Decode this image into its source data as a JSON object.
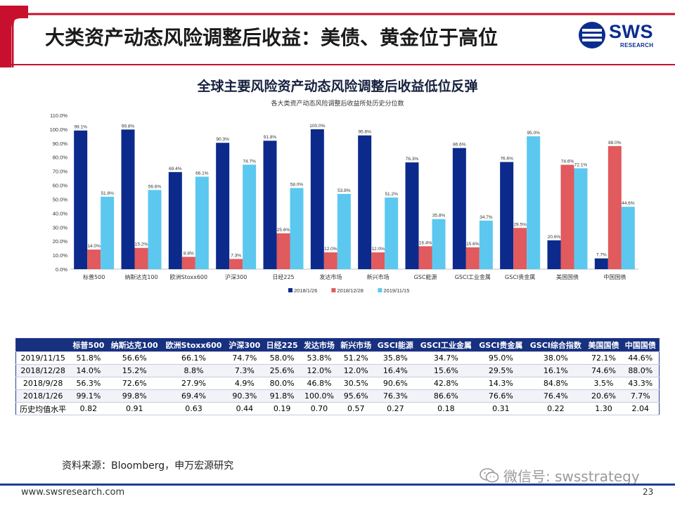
{
  "slide": {
    "title": "大类资产动态风险调整后收益：美债、黄金位于高位",
    "logo_text": "SWS",
    "logo_sub": "RESEARCH",
    "source": "资料来源：Bloomberg，申万宏源研究",
    "wechat": "微信号: swsstrategy",
    "footer_url": "www.swsresearch.com",
    "page_number": "23",
    "colors": {
      "accent_red": "#c8102e",
      "navy": "#17307f"
    }
  },
  "chart_data": {
    "type": "bar",
    "title": "全球主要风险资产动态风险调整后收益低位反弹",
    "subtitle": "各大类资产动态风险调整后收益所处历史分位数",
    "categories": [
      "标普500",
      "纳斯达克100",
      "欧洲Stoxx600",
      "沪深300",
      "日经225",
      "发达市场",
      "新兴市场",
      "GSC能源",
      "GSCI工业金属",
      "GSCI贵金属",
      "美国国债",
      "中国国债"
    ],
    "y_ticks": [
      "0.0%",
      "10.0%",
      "20.0%",
      "30.0%",
      "40.0%",
      "50.0%",
      "60.0%",
      "70.0%",
      "80.0%",
      "90.0%",
      "100.0%",
      "110.0%"
    ],
    "ylim": [
      0,
      110
    ],
    "legend_position": "bottom",
    "series": [
      {
        "name": "2018/1/26",
        "color": "#0b2a8c",
        "values": [
          99.1,
          99.8,
          69.4,
          90.3,
          91.8,
          100.0,
          95.6,
          76.3,
          86.6,
          76.6,
          20.6,
          7.7
        ],
        "labels": [
          "99.1%",
          "99.8%",
          "69.4%",
          "90.3%",
          "91.8%",
          "100.0%",
          "95.6%",
          "76.3%",
          "86.6%",
          "76.6%",
          "20.6%",
          "7.7%"
        ]
      },
      {
        "name": "2018/12/28",
        "color": "#e05a5e",
        "values": [
          14.0,
          15.2,
          8.8,
          7.3,
          25.6,
          12.0,
          12.0,
          16.4,
          15.6,
          29.5,
          74.6,
          88.0
        ],
        "labels": [
          "14.0%",
          "15.2%",
          "8.8%",
          "7.3%",
          "25.6%",
          "12.0%",
          "12.0%",
          "16.4%",
          "15.6%",
          "29.5%",
          "74.6%",
          "88.0%"
        ]
      },
      {
        "name": "2019/11/15",
        "color": "#5cc8f0",
        "values": [
          51.8,
          56.6,
          66.1,
          74.7,
          58.0,
          53.8,
          51.2,
          35.8,
          34.7,
          95.0,
          72.1,
          44.6
        ],
        "labels": [
          "51.8%",
          "56.6%",
          "66.1%",
          "74.7%",
          "58.0%",
          "53.8%",
          "51.2%",
          "35.8%",
          "34.7%",
          "95.0%",
          "72.1%",
          "44.6%"
        ]
      }
    ]
  },
  "table": {
    "headers": [
      "标普500",
      "纳斯达克100",
      "欧洲Stoxx600",
      "沪深300",
      "日经225",
      "发达市场",
      "新兴市场",
      "GSCI能源",
      "GSCI工业金属",
      "GSCI贵金属",
      "GSCI综合指数",
      "美国国债",
      "中国国债"
    ],
    "rows": [
      {
        "label": "2019/11/15",
        "cells": [
          "51.8%",
          "56.6%",
          "66.1%",
          "74.7%",
          "58.0%",
          "53.8%",
          "51.2%",
          "35.8%",
          "34.7%",
          "95.0%",
          "38.0%",
          "72.1%",
          "44.6%"
        ]
      },
      {
        "label": "2018/12/28",
        "cells": [
          "14.0%",
          "15.2%",
          "8.8%",
          "7.3%",
          "25.6%",
          "12.0%",
          "12.0%",
          "16.4%",
          "15.6%",
          "29.5%",
          "16.1%",
          "74.6%",
          "88.0%"
        ]
      },
      {
        "label": "2018/9/28",
        "cells": [
          "56.3%",
          "72.6%",
          "27.9%",
          "4.9%",
          "80.0%",
          "46.8%",
          "30.5%",
          "90.6%",
          "42.8%",
          "14.3%",
          "84.8%",
          "3.5%",
          "43.3%"
        ]
      },
      {
        "label": "2018/1/26",
        "cells": [
          "99.1%",
          "99.8%",
          "69.4%",
          "90.3%",
          "91.8%",
          "100.0%",
          "95.6%",
          "76.3%",
          "86.6%",
          "76.6%",
          "76.4%",
          "20.6%",
          "7.7%"
        ]
      },
      {
        "label": "历史均值水平",
        "cells": [
          "0.82",
          "0.91",
          "0.63",
          "0.44",
          "0.19",
          "0.70",
          "0.57",
          "0.27",
          "0.18",
          "0.31",
          "0.22",
          "1.30",
          "2.04"
        ]
      }
    ]
  }
}
